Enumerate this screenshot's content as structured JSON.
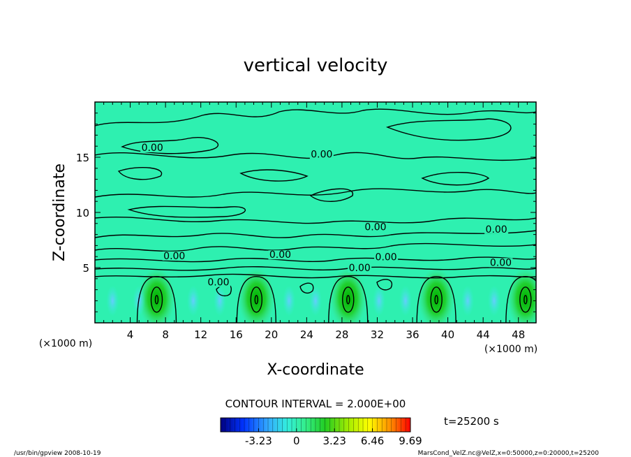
{
  "chart_data": {
    "type": "heatmap",
    "title": "vertical velocity",
    "xlabel": "X-coordinate",
    "ylabel": "Z-coordinate",
    "x_unit_left": "(×1000 m)",
    "x_unit_right": "(×1000 m)",
    "xlim": [
      0,
      50
    ],
    "ylim": [
      0,
      20
    ],
    "x_ticks": [
      4,
      8,
      12,
      16,
      20,
      24,
      28,
      32,
      36,
      40,
      44,
      48
    ],
    "y_ticks": [
      5,
      10,
      15
    ],
    "contour_interval_text": "CONTOUR INTERVAL = 2.000E+00",
    "contour_labels": [
      {
        "text": "0.00",
        "x": 6.5,
        "y": 15.7
      },
      {
        "text": "0.00",
        "x": 25.7,
        "y": 15.1
      },
      {
        "text": "0.00",
        "x": 31.8,
        "y": 8.5
      },
      {
        "text": "0.00",
        "x": 45.5,
        "y": 8.3
      },
      {
        "text": "0.00",
        "x": 9.0,
        "y": 5.9
      },
      {
        "text": "0.00",
        "x": 21.0,
        "y": 6.0
      },
      {
        "text": "0.00",
        "x": 33.0,
        "y": 5.8
      },
      {
        "text": "0.00",
        "x": 46.0,
        "y": 5.3
      },
      {
        "text": "0.00",
        "x": 30.0,
        "y": 4.8
      },
      {
        "text": "0.00",
        "x": 14.0,
        "y": 3.5
      }
    ],
    "updraft_centers_x": [
      7,
      18.3,
      28.7,
      38.7,
      48.8
    ],
    "colorbar": {
      "range": [
        -6.46,
        9.69
      ],
      "tick_labels": [
        "-3.23",
        "0",
        "3.23",
        "6.46",
        "9.69"
      ],
      "tick_values": [
        -3.23,
        0,
        3.23,
        6.46,
        9.69
      ],
      "colors": [
        "#000080",
        "#0033ff",
        "#33aaff",
        "#33eedd",
        "#33ee88",
        "#22cc22",
        "#aaee00",
        "#ffff00",
        "#ff8800",
        "#ff0000"
      ]
    },
    "time_text": "t=25200 s"
  },
  "footer": {
    "left": "/usr/bin/gpview  2008-10-19",
    "right": "MarsCond_VelZ.nc@VelZ,x=0:50000,z=0:20000,t=25200"
  }
}
